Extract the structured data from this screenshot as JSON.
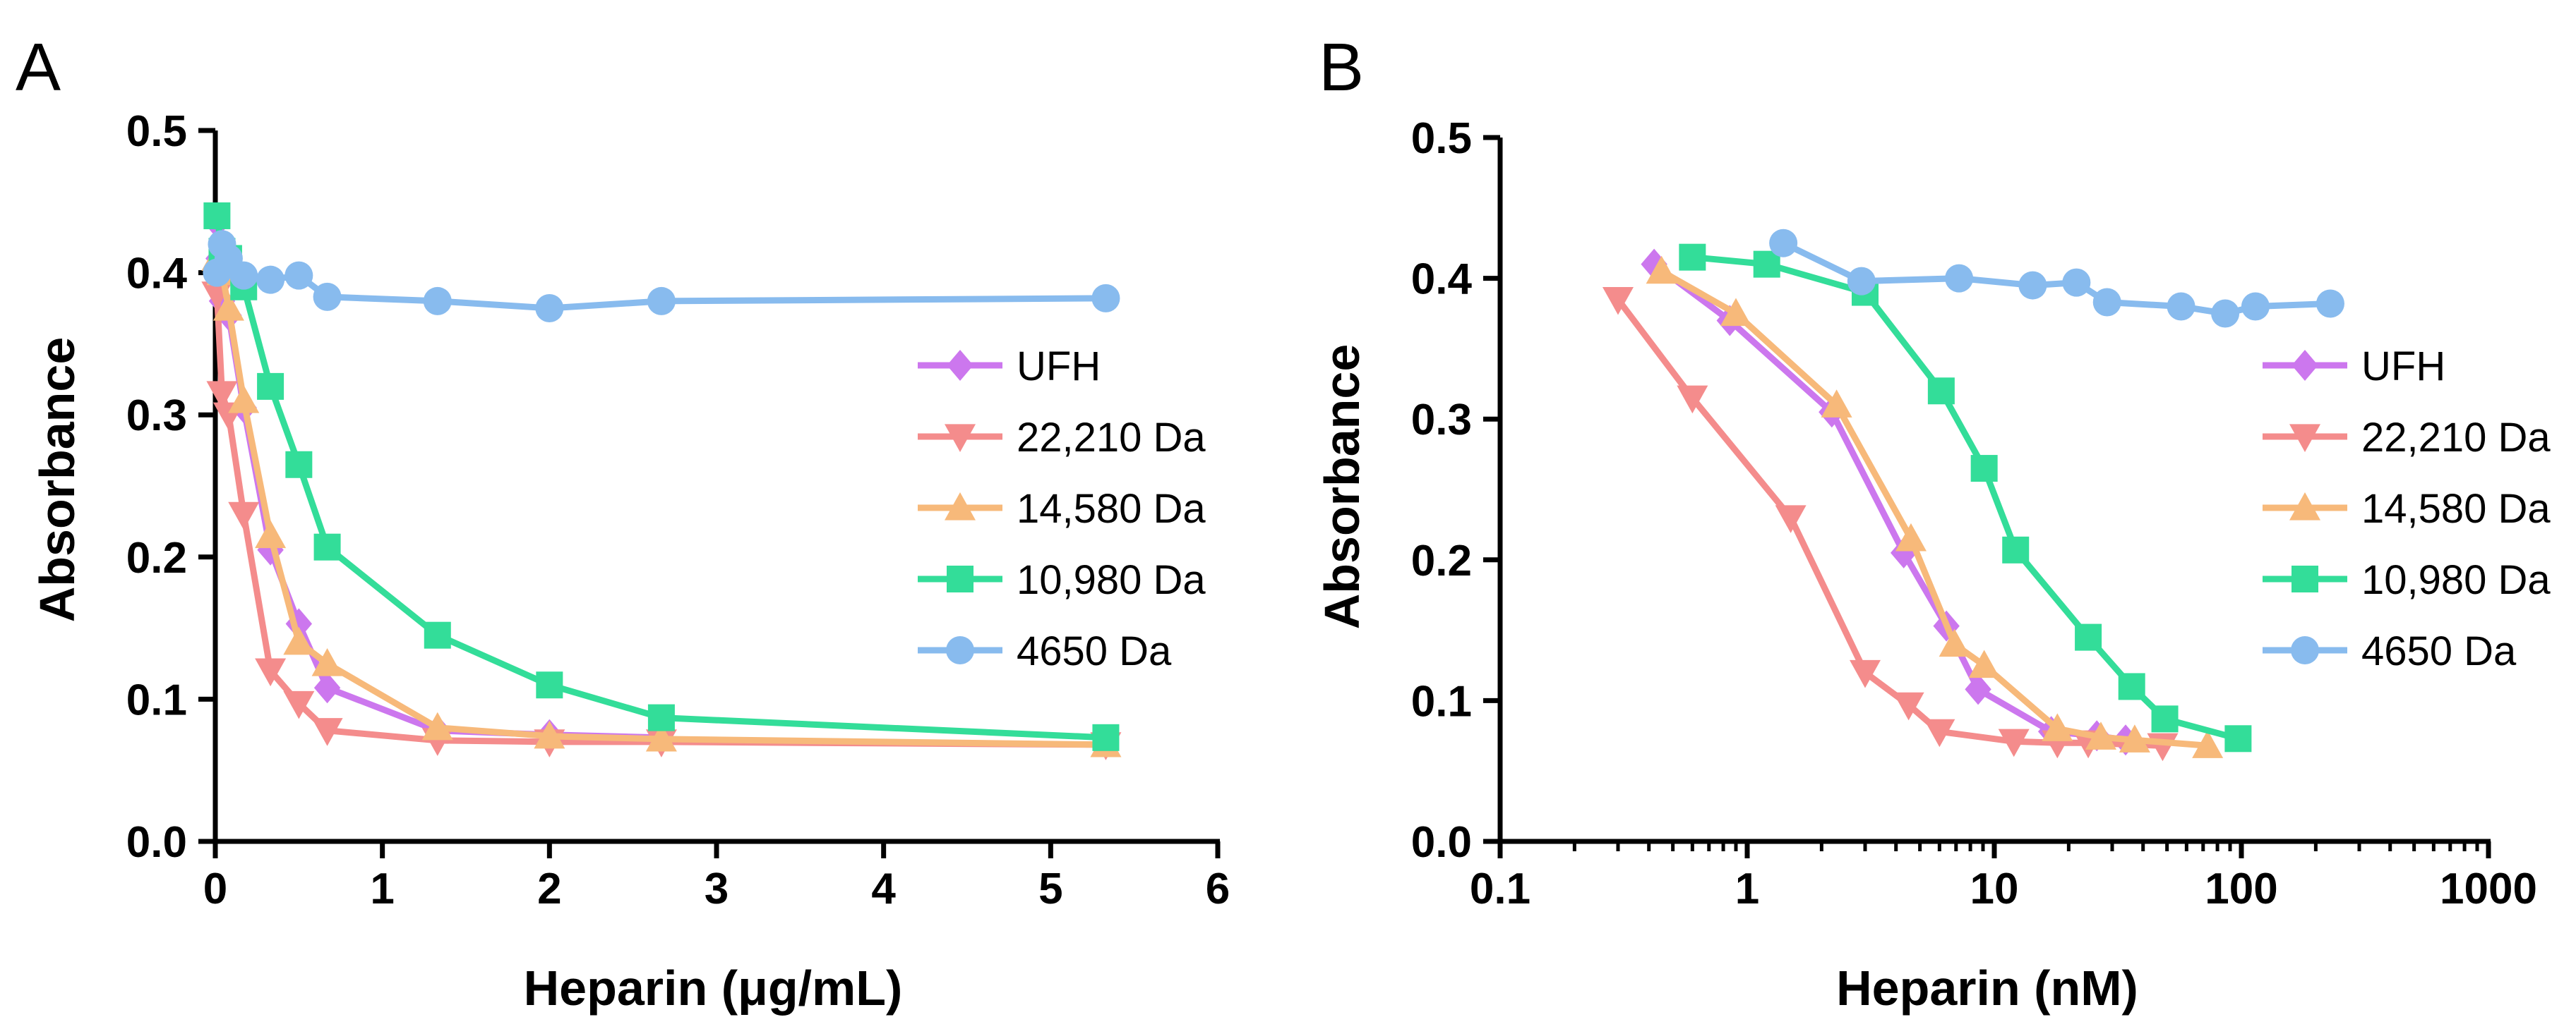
{
  "chart_data": [
    {
      "type": "line",
      "panel": "A",
      "xscale": "linear",
      "xlabel": "Heparin (μg/mL)",
      "ylabel": "Absorbance",
      "xlim": [
        0,
        6
      ],
      "ylim": [
        0,
        0.5
      ],
      "xticks": [
        0,
        1,
        2,
        3,
        4,
        5,
        6
      ],
      "xtick_labels": [
        "0",
        "1",
        "2",
        "3",
        "4",
        "5",
        "6"
      ],
      "yticks": [
        0,
        0.1,
        0.2,
        0.3,
        0.4,
        0.5
      ],
      "ytick_labels": [
        "0.0",
        "0.1",
        "0.2",
        "0.3",
        "0.4",
        "0.5"
      ],
      "legend": "right",
      "series": [
        {
          "name": "UFH",
          "color": "#CC77EE",
          "marker": "diamond",
          "x": [
            0.01,
            0.02,
            0.04,
            0.08,
            0.17,
            0.33,
            0.5,
            0.67,
            1.33,
            2.0,
            2.67
          ],
          "y": [
            0.435,
            0.41,
            0.38,
            0.37,
            0.305,
            0.205,
            0.153,
            0.108,
            0.078,
            0.075,
            0.073
          ]
        },
        {
          "name": "22,210 Da",
          "color": "#F48C8C",
          "marker": "triangle-down",
          "x": [
            0.01,
            0.04,
            0.08,
            0.17,
            0.33,
            0.5,
            0.67,
            1.33,
            2.0,
            2.67,
            5.33
          ],
          "y": [
            0.385,
            0.315,
            0.3,
            0.23,
            0.12,
            0.097,
            0.078,
            0.071,
            0.07,
            0.07,
            0.068
          ]
        },
        {
          "name": "14,580 Da",
          "color": "#F7B97A",
          "marker": "triangle-up",
          "x": [
            0.01,
            0.04,
            0.08,
            0.17,
            0.33,
            0.5,
            0.67,
            1.33,
            2.0,
            2.67,
            5.33
          ],
          "y": [
            0.41,
            0.4,
            0.375,
            0.31,
            0.215,
            0.14,
            0.125,
            0.08,
            0.074,
            0.072,
            0.068
          ]
        },
        {
          "name": "10,980 Da",
          "color": "#33DD99",
          "marker": "square",
          "x": [
            0.01,
            0.04,
            0.08,
            0.17,
            0.33,
            0.5,
            0.67,
            1.33,
            2.0,
            2.67,
            5.33
          ],
          "y": [
            0.44,
            0.415,
            0.41,
            0.39,
            0.32,
            0.265,
            0.207,
            0.145,
            0.11,
            0.087,
            0.073
          ]
        },
        {
          "name": "4650 Da",
          "color": "#88BBEE",
          "marker": "circle",
          "x": [
            0.01,
            0.04,
            0.08,
            0.17,
            0.33,
            0.5,
            0.67,
            1.33,
            2.0,
            2.67,
            5.33
          ],
          "y": [
            0.4,
            0.42,
            0.41,
            0.398,
            0.395,
            0.398,
            0.383,
            0.38,
            0.375,
            0.38,
            0.382
          ]
        }
      ]
    },
    {
      "type": "line",
      "panel": "B",
      "xscale": "log",
      "xlabel": "Heparin (nM)",
      "ylabel": "Absorbance",
      "xlim": [
        0.1,
        1000
      ],
      "ylim": [
        0,
        0.5
      ],
      "xticks": [
        0.1,
        1,
        10,
        100,
        1000
      ],
      "xtick_labels": [
        "0.1",
        "1",
        "10",
        "100",
        "1000"
      ],
      "yticks": [
        0,
        0.1,
        0.2,
        0.3,
        0.4,
        0.5
      ],
      "ytick_labels": [
        "0.0",
        "0.1",
        "0.2",
        "0.3",
        "0.4",
        "0.5"
      ],
      "legend": "right",
      "series": [
        {
          "name": "UFH",
          "color": "#CC77EE",
          "marker": "diamond",
          "x": [
            0.42,
            0.85,
            2.2,
            4.3,
            6.4,
            8.6,
            17,
            26,
            34
          ],
          "y": [
            0.41,
            0.37,
            0.305,
            0.205,
            0.153,
            0.108,
            0.078,
            0.075,
            0.072
          ]
        },
        {
          "name": "22,210 Da",
          "color": "#F48C8C",
          "marker": "triangle-down",
          "x": [
            0.3,
            0.6,
            1.5,
            3.0,
            4.5,
            6.0,
            12,
            18,
            24,
            48
          ],
          "y": [
            0.385,
            0.315,
            0.23,
            0.12,
            0.097,
            0.078,
            0.071,
            0.07,
            0.07,
            0.068
          ]
        },
        {
          "name": "14,580 Da",
          "color": "#F7B97A",
          "marker": "triangle-up",
          "x": [
            0.45,
            0.9,
            2.3,
            4.6,
            6.9,
            9.1,
            18,
            27,
            37,
            73
          ],
          "y": [
            0.405,
            0.375,
            0.31,
            0.215,
            0.14,
            0.125,
            0.08,
            0.074,
            0.072,
            0.068
          ]
        },
        {
          "name": "10,980 Da",
          "color": "#33DD99",
          "marker": "square",
          "x": [
            0.6,
            1.2,
            3.0,
            6.1,
            9.1,
            12.2,
            24,
            36,
            49,
            97
          ],
          "y": [
            0.415,
            0.41,
            0.39,
            0.32,
            0.265,
            0.207,
            0.145,
            0.11,
            0.087,
            0.073
          ]
        },
        {
          "name": "4650 Da",
          "color": "#88BBEE",
          "marker": "circle",
          "x": [
            1.4,
            2.9,
            7.2,
            14.3,
            21.5,
            28.6,
            57,
            86,
            114,
            229
          ],
          "y": [
            0.425,
            0.398,
            0.4,
            0.395,
            0.397,
            0.383,
            0.38,
            0.375,
            0.38,
            0.382
          ]
        }
      ]
    }
  ]
}
